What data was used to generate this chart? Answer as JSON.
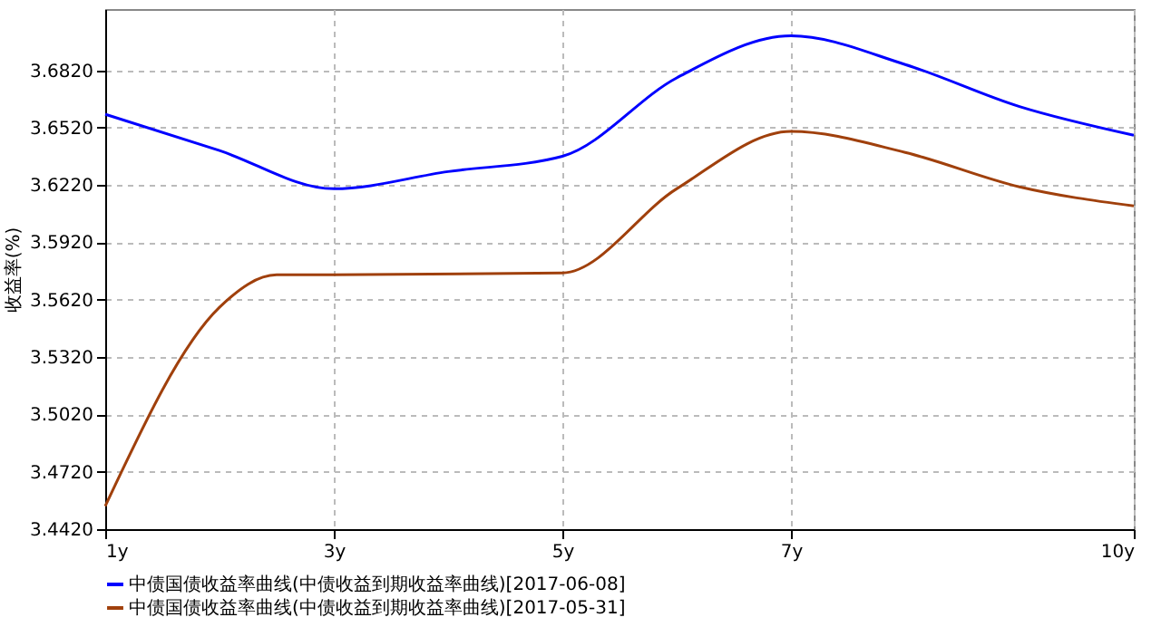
{
  "chart_data": {
    "type": "line",
    "ylabel": "收益率(%)",
    "xlim": [
      1,
      10
    ],
    "xticks": [
      {
        "value": 1,
        "label": "1y"
      },
      {
        "value": 3,
        "label": "3y"
      },
      {
        "value": 5,
        "label": "5y"
      },
      {
        "value": 7,
        "label": "7y"
      },
      {
        "value": 10,
        "label": "10y"
      }
    ],
    "ylim": [
      3.442,
      3.714
    ],
    "yticks": [
      {
        "value": 3.442,
        "label": "3.4420"
      },
      {
        "value": 3.472,
        "label": "3.4720"
      },
      {
        "value": 3.502,
        "label": "3.5020"
      },
      {
        "value": 3.532,
        "label": "3.5320"
      },
      {
        "value": 3.562,
        "label": "3.5620"
      },
      {
        "value": 3.592,
        "label": "3.5920"
      },
      {
        "value": 3.622,
        "label": "3.6220"
      },
      {
        "value": 3.652,
        "label": "3.6520"
      },
      {
        "value": 3.682,
        "label": "3.6820"
      }
    ],
    "grid": true,
    "legend": "bottom",
    "line_style": "solid",
    "series": [
      {
        "name": "中债国债收益率曲线(中债收益到期收益率曲线)[2017-06-08]",
        "color": "#0000ff",
        "x": [
          1,
          2,
          3,
          4,
          5,
          6,
          7,
          8,
          9,
          10
        ],
        "values": [
          3.659,
          3.64,
          3.62,
          3.629,
          3.637,
          3.678,
          3.7,
          3.685,
          3.663,
          3.648
        ]
      },
      {
        "name": "中债国债收益率曲线(中债收益到期收益率曲线)[2017-05-31]",
        "color": "#a0400c",
        "x": [
          1,
          2,
          2.5,
          3,
          5,
          6,
          7,
          8,
          9,
          10
        ],
        "values": [
          3.454,
          3.558,
          3.575,
          3.575,
          3.576,
          3.62,
          3.65,
          3.639,
          3.621,
          3.611
        ]
      }
    ]
  }
}
